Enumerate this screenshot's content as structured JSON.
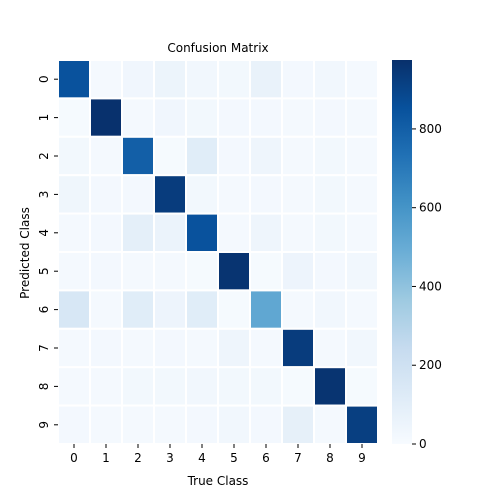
{
  "chart_data": {
    "type": "heatmap",
    "title": "Confusion Matrix",
    "xlabel": "True Class",
    "ylabel": "Predicted Class",
    "x_categories": [
      "0",
      "1",
      "2",
      "3",
      "4",
      "5",
      "6",
      "7",
      "8",
      "9"
    ],
    "y_categories": [
      "0",
      "1",
      "2",
      "3",
      "4",
      "5",
      "6",
      "7",
      "8",
      "9"
    ],
    "matrix": [
      [
        850,
        15,
        35,
        55,
        30,
        25,
        70,
        20,
        30,
        15
      ],
      [
        10,
        970,
        15,
        35,
        25,
        20,
        20,
        15,
        20,
        15
      ],
      [
        25,
        15,
        800,
        10,
        110,
        20,
        45,
        15,
        25,
        15
      ],
      [
        40,
        20,
        20,
        930,
        25,
        15,
        20,
        15,
        25,
        15
      ],
      [
        15,
        20,
        95,
        60,
        850,
        15,
        45,
        15,
        25,
        15
      ],
      [
        15,
        20,
        15,
        15,
        10,
        960,
        10,
        50,
        20,
        30
      ],
      [
        155,
        15,
        110,
        50,
        110,
        10,
        520,
        15,
        30,
        15
      ],
      [
        15,
        20,
        15,
        20,
        15,
        45,
        15,
        930,
        15,
        30
      ],
      [
        15,
        15,
        25,
        25,
        30,
        25,
        25,
        10,
        960,
        10
      ],
      [
        20,
        15,
        15,
        15,
        20,
        30,
        20,
        85,
        15,
        920
      ]
    ],
    "colorbar": {
      "min": 0,
      "max": 975,
      "ticks": [
        0,
        200,
        400,
        600,
        800
      ],
      "colormap": "Blues"
    },
    "colors": {
      "low": "#f7fbff",
      "high": "#08306b",
      "cell_border": "#ffffff"
    }
  }
}
